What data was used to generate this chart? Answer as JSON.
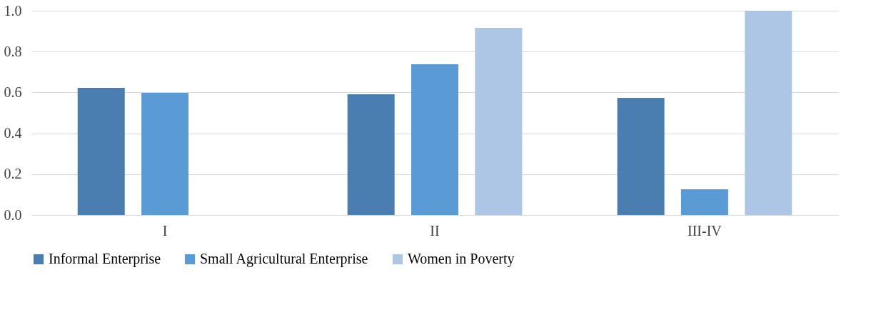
{
  "chart_data": {
    "type": "bar",
    "categories": [
      "I",
      "II",
      "III-IV"
    ],
    "series": [
      {
        "name": "Informal Enterprise",
        "color": "#4a7eb0",
        "values": [
          0.622,
          0.591,
          0.573
        ]
      },
      {
        "name": "Small Agricultural Enterprise",
        "color": "#5b9bd5",
        "values": [
          0.598,
          0.738,
          0.126
        ]
      },
      {
        "name": "Women in Poverty",
        "color": "#adc6e5",
        "values": [
          null,
          0.916,
          1.0
        ]
      }
    ],
    "ylim": [
      0,
      1.0
    ],
    "yticks": [
      {
        "value": 0,
        "label": "0.0"
      },
      {
        "value": 0.2,
        "label": "0.2"
      },
      {
        "value": 0.4,
        "label": "0.4"
      },
      {
        "value": 0.6,
        "label": "0.6"
      },
      {
        "value": 0.8,
        "label": "0.8"
      },
      {
        "value": 1.0,
        "label": "1.0"
      }
    ],
    "grid": "y",
    "legend": "bottom"
  }
}
